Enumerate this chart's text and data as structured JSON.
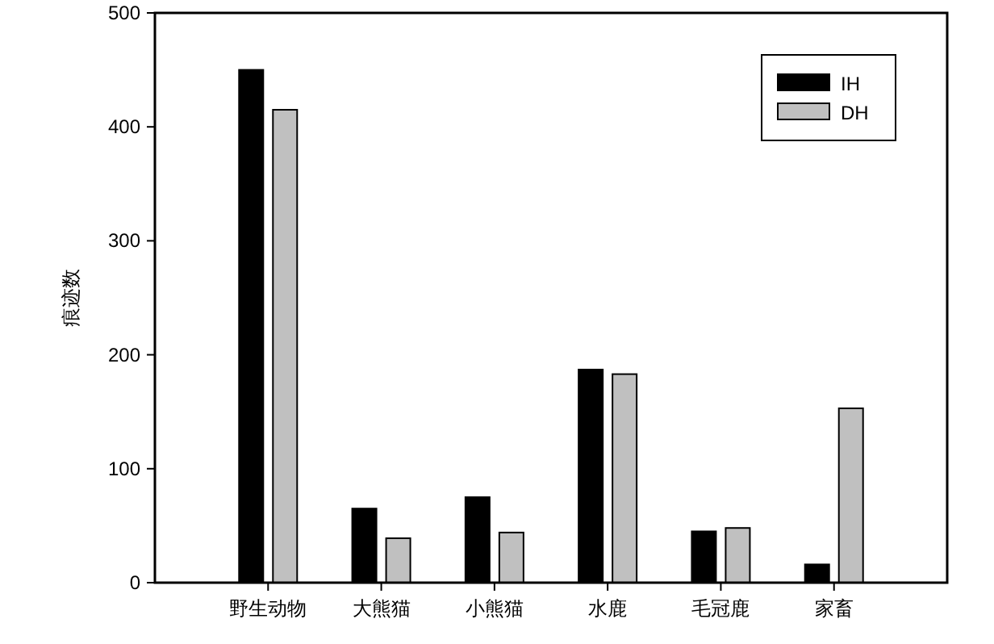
{
  "chart_data": {
    "type": "bar",
    "ylabel": "痕迹数",
    "categories": [
      "野生动物",
      "大熊猫",
      "小熊猫",
      "水鹿",
      "毛冠鹿",
      "家畜"
    ],
    "series": [
      {
        "name": "IH",
        "color": "#000000",
        "values": [
          450,
          65,
          75,
          187,
          45,
          16
        ]
      },
      {
        "name": "DH",
        "color": "#c0c0c0",
        "values": [
          415,
          39,
          44,
          183,
          48,
          153
        ]
      }
    ],
    "ylim": [
      0,
      500
    ],
    "yticks": [
      0,
      100,
      200,
      300,
      400,
      500
    ],
    "grid": false,
    "legend": "top right"
  }
}
